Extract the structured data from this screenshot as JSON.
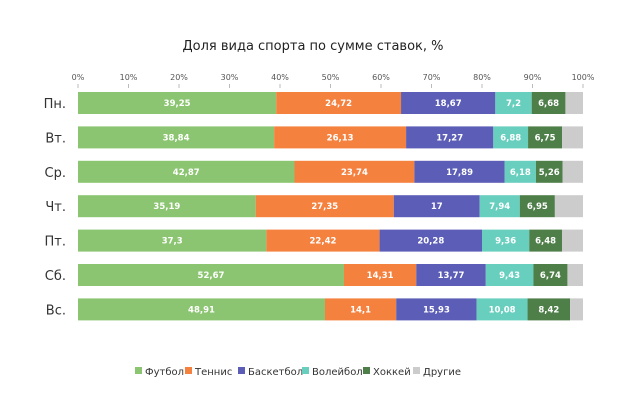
{
  "chart_data": {
    "type": "bar",
    "orientation": "horizontal",
    "stacked": true,
    "title": "Доля вида спорта по сумме ставок, %",
    "xlabel": "",
    "ylabel": "",
    "xlim": [
      0,
      100
    ],
    "x_ticks": [
      "0%",
      "10%",
      "20%",
      "30%",
      "40%",
      "50%",
      "60%",
      "70%",
      "80%",
      "90%",
      "100%"
    ],
    "legend_position": "bottom",
    "grid": false,
    "categories": [
      "Пн.",
      "Вт.",
      "Ср.",
      "Чт.",
      "Пт.",
      "Сб.",
      "Вс."
    ],
    "series": [
      {
        "name": "Футбол",
        "color": "#8cc571",
        "labeled": true,
        "values": [
          39.25,
          38.84,
          42.87,
          35.19,
          37.3,
          52.67,
          48.91
        ],
        "labels": [
          "39,25",
          "38,84",
          "42,87",
          "35,19",
          "37,3",
          "52,67",
          "48,91"
        ]
      },
      {
        "name": "Теннис",
        "color": "#f5813f",
        "labeled": true,
        "values": [
          24.72,
          26.13,
          23.74,
          27.35,
          22.42,
          14.31,
          14.1
        ],
        "labels": [
          "24,72",
          "26,13",
          "23,74",
          "27,35",
          "22,42",
          "14,31",
          "14,1"
        ]
      },
      {
        "name": "Баскетбол",
        "color": "#5b5db6",
        "labeled": true,
        "values": [
          18.67,
          17.27,
          17.89,
          17,
          20.28,
          13.77,
          15.93
        ],
        "labels": [
          "18,67",
          "17,27",
          "17,89",
          "17",
          "20,28",
          "13,77",
          "15,93"
        ]
      },
      {
        "name": "Волейбол",
        "color": "#68cfbf",
        "labeled": true,
        "values": [
          7.2,
          6.88,
          6.18,
          7.94,
          9.36,
          9.43,
          10.08
        ],
        "labels": [
          "7,2",
          "6,88",
          "6,18",
          "7,94",
          "9,36",
          "9,43",
          "10,08"
        ]
      },
      {
        "name": "Хоккей",
        "color": "#4e7f49",
        "labeled": true,
        "values": [
          6.68,
          6.75,
          5.26,
          6.95,
          6.48,
          6.74,
          8.42
        ],
        "labels": [
          "6,68",
          "6,75",
          "5,26",
          "6,95",
          "6,48",
          "6,74",
          "8,42"
        ]
      },
      {
        "name": "Другие",
        "color": "#cccccc",
        "labeled": false,
        "values": [
          3.48,
          4.13,
          4.06,
          5.57,
          4.16,
          3.08,
          2.56
        ],
        "labels": []
      }
    ]
  }
}
